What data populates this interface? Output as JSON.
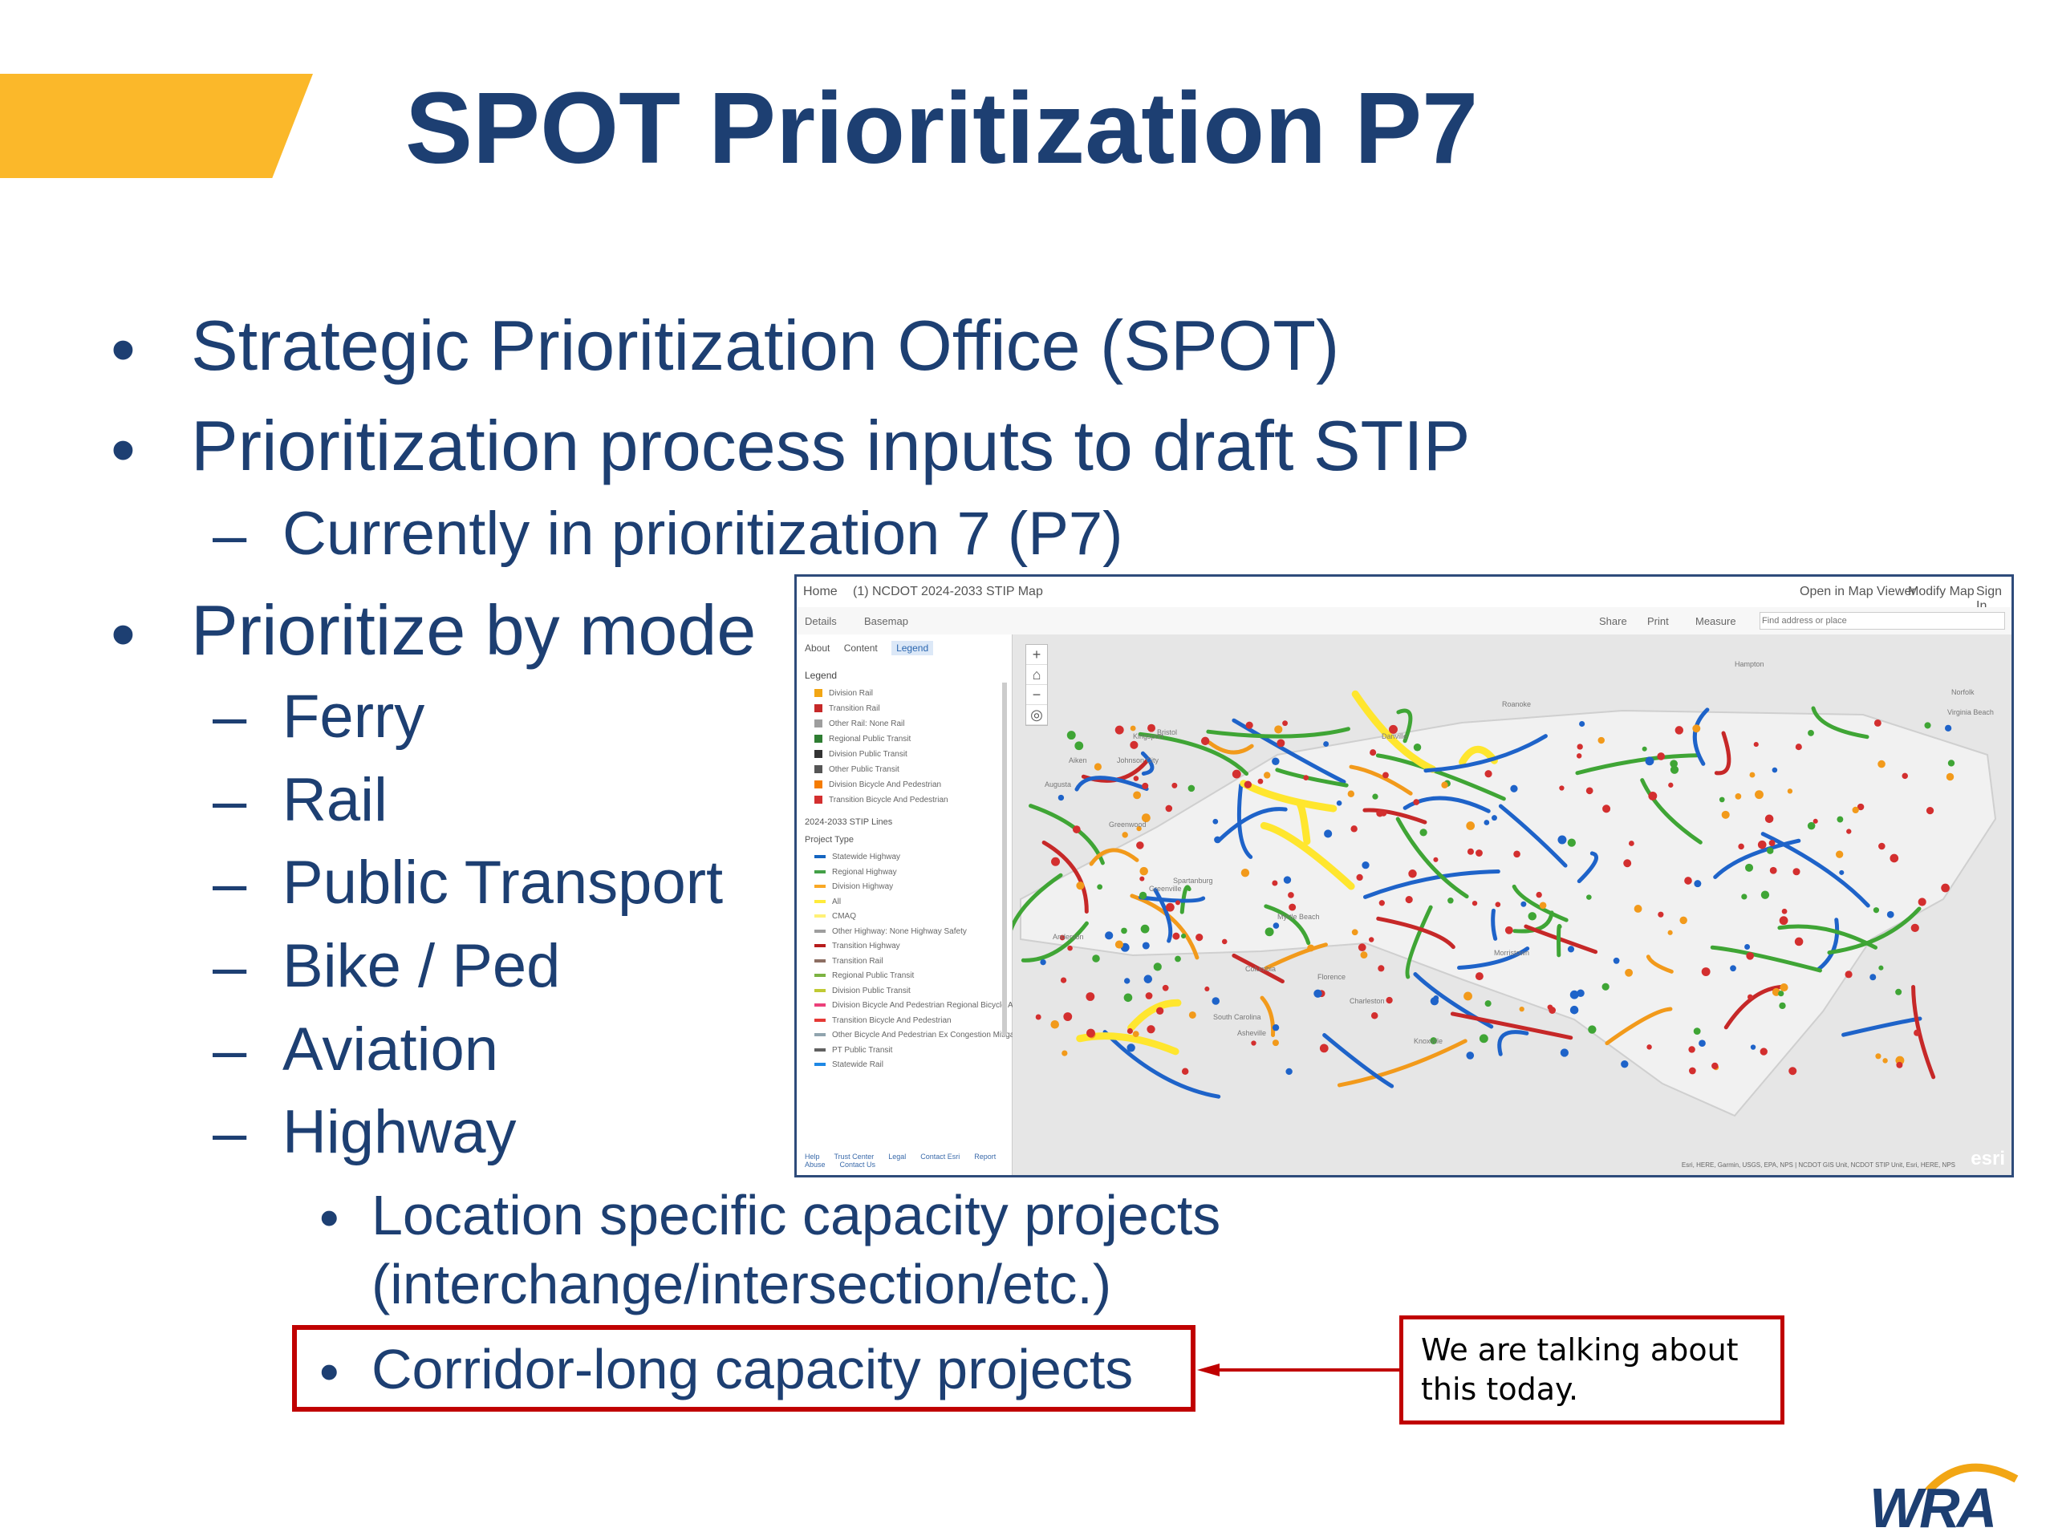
{
  "slide": {
    "title": "SPOT Prioritization P7",
    "bullets": [
      "Strategic Prioritization Office (SPOT)",
      "Prioritization process inputs to draft STIP",
      "Currently in prioritization 7 (P7)",
      "Prioritize by mode"
    ],
    "modes": [
      "Ferry",
      "Rail",
      "Public Transport",
      "Bike / Ped",
      "Aviation",
      "Highway"
    ],
    "highway_items": [
      "Location specific capacity projects",
      "(interchange/intersection/etc.)",
      "Corridor-long capacity projects"
    ],
    "bullet_symbol": "•",
    "dash_symbol": "–",
    "callout": "We are talking about this today.",
    "logo": "WRA"
  },
  "map": {
    "header": {
      "home": "Home",
      "title": "(1) NCDOT 2024-2033 STIP Map",
      "open_viewer": "Open in Map Viewer",
      "modify": "Modify Map",
      "signin": "Sign In"
    },
    "toolbar": {
      "details": "Details",
      "basemap": "Basemap",
      "share": "Share",
      "print": "Print",
      "measure": "Measure",
      "search_placeholder": "Find address or place"
    },
    "tabs": {
      "about": "About",
      "content": "Content",
      "legend": "Legend"
    },
    "legend_title": "Legend",
    "legend_points": [
      {
        "label": "Division Rail",
        "color": "#F2A614"
      },
      {
        "label": "Transition Rail",
        "color": "#C62828"
      },
      {
        "label": "Other Rail: None Rail",
        "color": "#9E9E9E"
      },
      {
        "label": "Regional Public Transit",
        "color": "#2E7D32"
      },
      {
        "label": "Division Public Transit",
        "color": "#333333"
      },
      {
        "label": "Other Public Transit",
        "color": "#555555"
      },
      {
        "label": "Division Bicycle And Pedestrian",
        "color": "#F57C00"
      },
      {
        "label": "Transition Bicycle And Pedestrian",
        "color": "#D32F2F"
      }
    ],
    "lines_section": "2024-2033 STIP Lines",
    "project_type": "Project Type",
    "legend_lines": [
      {
        "label": "Statewide Highway",
        "color": "#1565C0"
      },
      {
        "label": "Regional Highway",
        "color": "#43A047"
      },
      {
        "label": "Division Highway",
        "color": "#F9A825"
      },
      {
        "label": "All",
        "color": "#FFEB3B"
      },
      {
        "label": "CMAQ",
        "color": "#FFF176"
      },
      {
        "label": "Other Highway: None Highway Safety",
        "color": "#9E9E9E"
      },
      {
        "label": "Transition Highway",
        "color": "#B71C1C"
      },
      {
        "label": "Transition Rail",
        "color": "#8D6E63"
      },
      {
        "label": "Regional Public Transit",
        "color": "#7CB342"
      },
      {
        "label": "Division Public Transit",
        "color": "#C0CA33"
      },
      {
        "label": "Division Bicycle And Pedestrian Regional Bicycle And Pedestrian",
        "color": "#EC407A"
      },
      {
        "label": "Transition Bicycle And Pedestrian",
        "color": "#E53935"
      },
      {
        "label": "Other Bicycle And Pedestrian Ex Congestion Mitigation Non",
        "color": "#90A4AE"
      },
      {
        "label": "PT Public Transit",
        "color": "#616161"
      },
      {
        "label": "Statewide Rail",
        "color": "#1E88E5"
      }
    ],
    "footer": [
      "Help",
      "Trust Center",
      "Legal",
      "Contact Esri",
      "Report Abuse",
      "Contact Us"
    ],
    "attribution": "Esri, HERE, Garmin, USGS, EPA, NPS | NCDOT GIS Unit, NCDOT STIP Unit, Esri, HERE, NPS",
    "brand": "esri",
    "place_labels": [
      "Kingsport",
      "Johnson City",
      "Bristol",
      "Danville",
      "Roanoke",
      "Norfolk",
      "Virginia Beach",
      "Spartanburg",
      "Greenville",
      "Columbia",
      "Florence",
      "Myrtle Beach",
      "Augusta",
      "Aiken",
      "Greenwood",
      "Anderson",
      "Asheville",
      "Knoxville",
      "Morristown",
      "South Carolina",
      "Hampton",
      "Charleston"
    ]
  }
}
